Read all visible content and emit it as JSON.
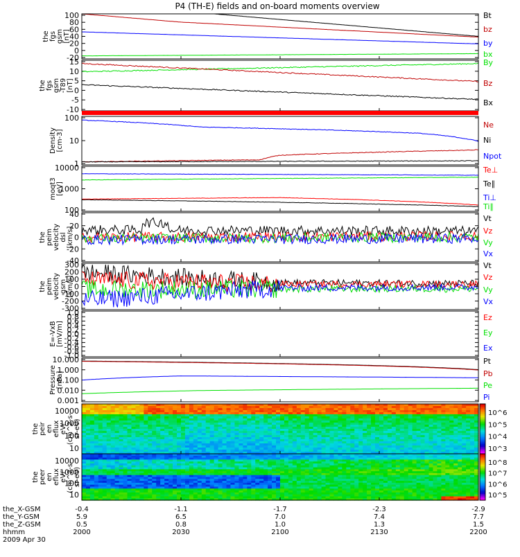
{
  "title": "P4 (TH-E) fields and on-board moments overview",
  "colors": {
    "black": "#000000",
    "red": "#ff0000",
    "darkred": "#c00000",
    "green": "#00e000",
    "blue": "#0000ff",
    "orange": "#ff3300"
  },
  "chart_data": [
    {
      "type": "line",
      "ylabel_lines": [
        "the",
        "fgs",
        "gsm",
        "[nT]"
      ],
      "yticks": [
        "100",
        "80",
        "60",
        "40",
        "20",
        "0",
        "-20"
      ],
      "ylim": [
        -20,
        100
      ],
      "legend": [
        "Bt",
        "bz",
        "by",
        "bx"
      ],
      "series": [
        {
          "name": "Bt",
          "color": "black",
          "x": [
            0,
            1
          ],
          "y": [
            130,
            40
          ]
        },
        {
          "name": "bz",
          "color": "darkred",
          "x": [
            0,
            0.25,
            1
          ],
          "y": [
            100,
            78,
            38
          ]
        },
        {
          "name": "by",
          "color": "blue",
          "x": [
            0,
            1
          ],
          "y": [
            52,
            20
          ]
        },
        {
          "name": "bx",
          "color": "green",
          "x": [
            0,
            1
          ],
          "y": [
            -12,
            -6
          ]
        }
      ]
    },
    {
      "type": "line",
      "ylabel_lines": [
        "the",
        "fgs",
        "gsm",
        "-T89",
        "[nT]"
      ],
      "yticks": [
        "15",
        "10",
        "5",
        "0",
        "-5",
        "-10"
      ],
      "ylim": [
        -15,
        16
      ],
      "legend": [
        "By",
        "Bz",
        "Bx"
      ],
      "series": [
        {
          "name": "By",
          "color": "green",
          "x": [
            0,
            1
          ],
          "y": [
            9,
            14
          ]
        },
        {
          "name": "Bz",
          "color": "darkred",
          "x": [
            0,
            1
          ],
          "y": [
            14,
            3
          ]
        },
        {
          "name": "Bx",
          "color": "black",
          "x": [
            0,
            1
          ],
          "y": [
            1,
            -8
          ]
        }
      ]
    },
    {
      "type": "line",
      "ylabel_lines": [
        "Density",
        "[cm-3]"
      ],
      "yticks": [
        "100",
        "10",
        "1"
      ],
      "log": true,
      "ylim": [
        0.4,
        300
      ],
      "legend": [
        "Ne",
        "Ni",
        "Npot"
      ],
      "series": [
        {
          "name": "Ne",
          "color": "darkred",
          "x": [
            0,
            0.45,
            0.5,
            0.98,
            1
          ],
          "y": [
            0.6,
            0.8,
            1.5,
            3,
            3.2
          ]
        },
        {
          "name": "Ni",
          "color": "black",
          "x": [
            0,
            1
          ],
          "y": [
            0.6,
            0.7
          ]
        },
        {
          "name": "Npot",
          "color": "blue",
          "x": [
            0,
            0.3,
            0.85,
            1
          ],
          "y": [
            180,
            70,
            30,
            10
          ]
        }
      ]
    },
    {
      "type": "line",
      "ylabel_lines": [
        "moqt3",
        "[eV]"
      ],
      "yticks": [
        "10000",
        "1000",
        "100"
      ],
      "log": true,
      "ylim": [
        20,
        15000
      ],
      "legend": [
        "Te⊥",
        "Te∥",
        "Ti⊥",
        "Ti∥"
      ],
      "series": [
        {
          "name": "Te⊥",
          "color": "red",
          "x": [
            0,
            0.5,
            1
          ],
          "y": [
            120,
            150,
            50
          ]
        },
        {
          "name": "Te∥",
          "color": "black",
          "x": [
            0,
            1
          ],
          "y": [
            110,
            40
          ]
        },
        {
          "name": "Ti⊥",
          "color": "blue",
          "x": [
            0,
            1
          ],
          "y": [
            5000,
            4000
          ]
        },
        {
          "name": "Ti∥",
          "color": "green",
          "x": [
            0,
            1
          ],
          "y": [
            2000,
            3000
          ]
        }
      ]
    },
    {
      "type": "line",
      "ylabel_lines": [
        "the",
        "peim",
        "velocity",
        "dsl",
        "[km/s]"
      ],
      "yticks": [
        "40",
        "20",
        "0",
        "-20",
        "-40"
      ],
      "ylim": [
        -40,
        40
      ],
      "legend": [
        "Vt",
        "Vz",
        "Vy",
        "Vx"
      ],
      "series": [
        {
          "name": "Vt",
          "color": "black",
          "x": [
            0,
            1
          ],
          "y": [
            12,
            10
          ]
        },
        {
          "name": "Vz",
          "color": "red",
          "x": [
            0,
            1
          ],
          "y": [
            0,
            2
          ]
        },
        {
          "name": "Vy",
          "color": "green",
          "x": [
            0,
            1
          ],
          "y": [
            -2,
            0
          ]
        },
        {
          "name": "Vx",
          "color": "blue",
          "x": [
            0,
            1
          ],
          "y": [
            -4,
            -2
          ]
        }
      ]
    },
    {
      "type": "line",
      "ylabel_lines": [
        "the",
        "peim",
        "velocity",
        "gsm",
        "[km/s]"
      ],
      "yticks": [
        "300",
        "200",
        "100",
        "0",
        "-100",
        "-200",
        "-300"
      ],
      "ylim": [
        -300,
        320
      ],
      "legend": [
        "Vt",
        "Vz",
        "Vy",
        "Vx"
      ],
      "series": [
        {
          "name": "Vt",
          "color": "black",
          "x": [
            0,
            0.5,
            1
          ],
          "y": [
            200,
            60,
            50
          ]
        },
        {
          "name": "Vz",
          "color": "red",
          "x": [
            0,
            0.5,
            1
          ],
          "y": [
            100,
            40,
            40
          ]
        },
        {
          "name": "Vy",
          "color": "green",
          "x": [
            0,
            1
          ],
          "y": [
            -30,
            -20
          ]
        },
        {
          "name": "Vx",
          "color": "blue",
          "x": [
            0,
            0.5,
            1
          ],
          "y": [
            -180,
            -10,
            0
          ]
        }
      ]
    },
    {
      "type": "line",
      "ylabel_lines": [
        "E=-VxB",
        "[mV/m]"
      ],
      "yticks": [
        "1.0",
        "0.8",
        "0.6",
        "0.4",
        "0.2",
        "0.0",
        "-0.2",
        "-0.4",
        "-0.6",
        "-0.8",
        "-1.0"
      ],
      "ylim": [
        -1,
        1
      ],
      "legend": [
        "Ez",
        "Ey",
        "Ex"
      ],
      "series": []
    },
    {
      "type": "line",
      "ylabel_lines": [
        "Pressure",
        "[nPa]"
      ],
      "yticks": [
        "10.000",
        "1.000",
        "0.100",
        "0.010",
        "0.001"
      ],
      "log": true,
      "ylim": [
        0.001,
        15
      ],
      "legend": [
        "Pt",
        "Pb",
        "Pe",
        "Pi"
      ],
      "series": [
        {
          "name": "Pt",
          "color": "black",
          "x": [
            0,
            1
          ],
          "y": [
            8,
            1.2
          ]
        },
        {
          "name": "Pb",
          "color": "darkred",
          "x": [
            0,
            1
          ],
          "y": [
            7.5,
            1.1
          ]
        },
        {
          "name": "Pe",
          "color": "green",
          "x": [
            0,
            0.3,
            1
          ],
          "y": [
            0.006,
            0.012,
            0.02
          ]
        },
        {
          "name": "Pi",
          "color": "blue",
          "x": [
            0,
            0.25,
            0.6,
            1
          ],
          "y": [
            0.12,
            0.3,
            0.25,
            0.2
          ]
        }
      ]
    },
    {
      "type": "heatmap",
      "ylabel_lines": [
        "the",
        "peir",
        "en",
        "eflux",
        "eV/",
        "(cm^2-s-",
        "sr-eV)"
      ],
      "yticks": [
        "10000",
        "1000",
        "100",
        "10"
      ],
      "colorbar_ticks": [
        "10^6",
        "10^5",
        "10^4",
        "10^3"
      ]
    },
    {
      "type": "heatmap",
      "ylabel_lines": [
        "the",
        "peer",
        "en",
        "eflux",
        "eV/",
        "(cm^2-s-",
        "sr-eV)"
      ],
      "yticks": [
        "10000",
        "1000",
        "100",
        "10"
      ],
      "colorbar_ticks": [
        "10^8",
        "10^7",
        "10^6",
        "10^5"
      ]
    }
  ],
  "xaxis": {
    "row_labels": [
      "the_X-GSM",
      "the_Y-GSM",
      "the_Z-GSM",
      "hhmm",
      "2009 Apr 30"
    ],
    "ticks": [
      {
        "x": "-0.4",
        "y": "5.9",
        "z": "0.5",
        "t": "2000"
      },
      {
        "x": "-1.1",
        "y": "6.5",
        "z": "0.8",
        "t": "2030"
      },
      {
        "x": "-1.7",
        "y": "7.0",
        "z": "1.0",
        "t": "2100"
      },
      {
        "x": "-2.3",
        "y": "7.4",
        "z": "1.3",
        "t": "2130"
      },
      {
        "x": "-2.9",
        "y": "7.7",
        "z": "1.5",
        "t": "2200"
      }
    ]
  }
}
